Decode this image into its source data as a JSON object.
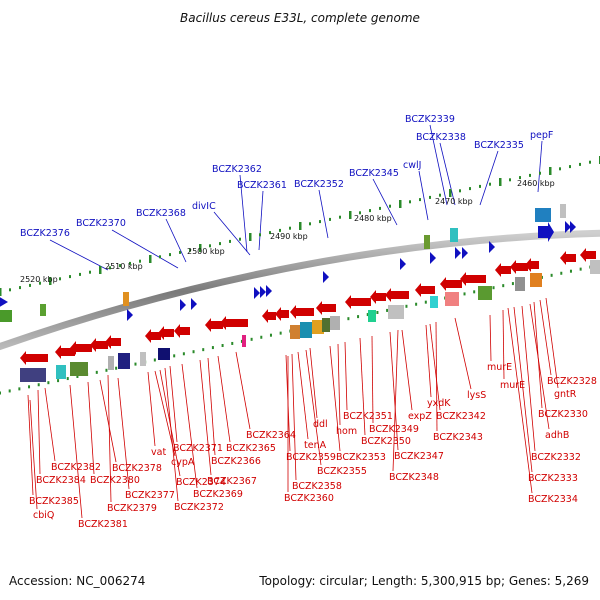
{
  "title": "Bacillus cereus E33L, complete genome",
  "footer": {
    "accession": "Accession: NC_006274",
    "summary": "Topology: circular; Length: 5,300,915 bp; Genes: 5,269"
  },
  "scale_labels": [
    "2520 kbp",
    "2510 kbp",
    "2500 kbp",
    "2490 kbp",
    "2480 kbp",
    "2470 kbp",
    "2460 kbp"
  ],
  "blue_labels": [
    "BCZK2376",
    "BCZK2370",
    "BCZK2368",
    "divIC",
    "BCZK2362",
    "BCZK2361",
    "BCZK2352",
    "BCZK2345",
    "cwlJ",
    "BCZK2339",
    "BCZK2338",
    "BCZK2335",
    "pepF"
  ],
  "red_labels": [
    "BCZK2382",
    "BCZK2384",
    "BCZK2385",
    "cbiQ",
    "BCZK2381",
    "BCZK2378",
    "BCZK2380",
    "BCZK2379",
    "BCZK2377",
    "vat",
    "BCZK2374",
    "cypA",
    "BCZK2371",
    "BCZK2372",
    "BCZK2369",
    "BCZK2367",
    "BCZK2366",
    "BCZK2365",
    "BCZK2364",
    "BCZK2360",
    "BCZK2358",
    "BCZK2359",
    "tenA",
    "BCZK2355",
    "ddl",
    "BCZK2353",
    "hom",
    "BCZK2351",
    "BCZK2350",
    "BCZK2349",
    "BCZK2347",
    "expZ",
    "BCZK2348",
    "yxdK",
    "BCZK2342",
    "BCZK2343",
    "lysS",
    "murE",
    "murE",
    "BCZK2328",
    "gntR",
    "BCZK2330",
    "adhB",
    "BCZK2332",
    "BCZK2333",
    "BCZK2334"
  ],
  "colors": {
    "forward": "#1010c0",
    "reverse": "#d00000",
    "backbone": "#888888",
    "tick": "#2a8a2a"
  }
}
